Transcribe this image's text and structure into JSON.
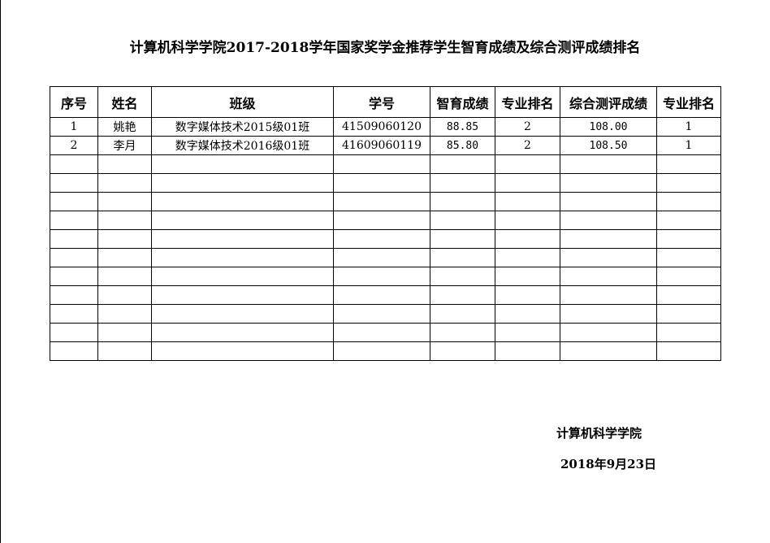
{
  "title": "计算机科学学院2017-2018学年国家奖学金推荐学生智育成绩及综合测评成绩排名",
  "table": {
    "headers": [
      "序号",
      "姓名",
      "班级",
      "学号",
      "智育成绩",
      "专业排名",
      "综合测评成绩",
      "专业排名"
    ],
    "rows": [
      [
        "1",
        "姚艳",
        "数字媒体技术2015级01班",
        "41509060120",
        "88.85",
        "2",
        "108.00",
        "1"
      ],
      [
        "2",
        "李月",
        "数字媒体技术2016级01班",
        "41609060119",
        "85.80",
        "2",
        "108.50",
        "1"
      ]
    ],
    "empty_rows": 11
  },
  "footer": {
    "org": "计算机科学学院",
    "date": "2018年9月23日"
  }
}
